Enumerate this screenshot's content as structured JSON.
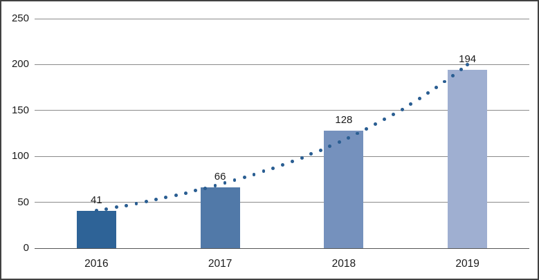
{
  "chart_data": {
    "type": "bar",
    "title": "",
    "xlabel": "",
    "ylabel": "",
    "categories": [
      "2016",
      "2017",
      "2018",
      "2019"
    ],
    "series": [
      {
        "name": "annual-value-bars",
        "type": "bar",
        "values": [
          41,
          66,
          128,
          194
        ]
      },
      {
        "name": "trendline",
        "type": "dotted-line",
        "curve": "exponential",
        "start_value": 41,
        "end_value": 200
      }
    ],
    "data_labels": [
      "41",
      "66",
      "128",
      "194"
    ],
    "ylim": [
      0,
      250
    ],
    "ytick_step": 50,
    "yticks": [
      "0",
      "50",
      "100",
      "150",
      "200",
      "250"
    ],
    "grid": "horizontal",
    "legend": "none",
    "colors": {
      "bars": [
        "#2e6397",
        "#5179a8",
        "#7591bd",
        "#9fafd1"
      ],
      "trend_dot": "#2a5e92",
      "gridline": "#8a8a8a",
      "axis_line": "#565656",
      "text": "#1a1a1a",
      "background": "#ffffff",
      "border": "#414141"
    }
  }
}
